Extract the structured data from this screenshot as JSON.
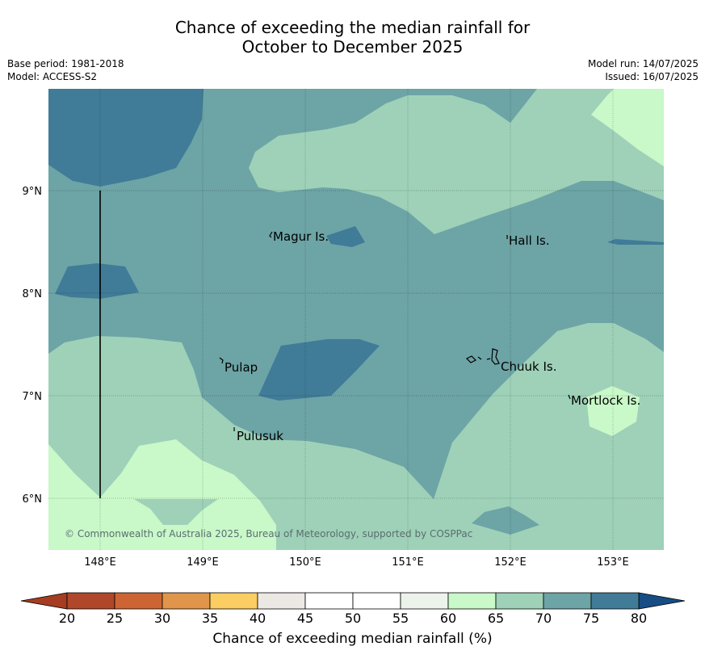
{
  "title": {
    "line1": "Chance of exceeding the median rainfall for",
    "line2": "October to December 2025"
  },
  "meta_left": {
    "base_period": "Base period: 1981-2018",
    "model": "Model: ACCESS-S2"
  },
  "meta_right": {
    "model_run": "Model run: 14/07/2025",
    "issued": "Issued: 16/07/2025"
  },
  "map": {
    "lon_ticks": [
      "148°E",
      "149°E",
      "150°E",
      "151°E",
      "152°E",
      "153°E"
    ],
    "lat_ticks": [
      "9°N",
      "8°N",
      "7°N",
      "6°N"
    ],
    "places": [
      {
        "name": "Magur Is."
      },
      {
        "name": "Hall Is."
      },
      {
        "name": "Pulap"
      },
      {
        "name": "Chuuk Is."
      },
      {
        "name": "Mortlock Is."
      },
      {
        "name": "Pulusuk"
      }
    ],
    "copyright": "© Commonwealth of Australia 2025, Bureau of Meteorology, supported by COSPPac",
    "colors": {
      "c55_60": "#ebf3ea",
      "c60_65": "#c9f8c9",
      "c65_70": "#9ed1b8",
      "c70_75": "#6da4a6",
      "c75_80": "#407b98"
    }
  },
  "colorbar": {
    "ticks": [
      "20",
      "25",
      "30",
      "35",
      "40",
      "45",
      "50",
      "55",
      "60",
      "65",
      "70",
      "75",
      "80"
    ],
    "colors": [
      "#b0472a",
      "#cd6434",
      "#e0954a",
      "#fbcd62",
      "#ece8e4",
      "#ffffff",
      "#ffffff",
      "#ebf3ea",
      "#c9f8c9",
      "#9ed1b8",
      "#6da4a6",
      "#407b98"
    ],
    "low_color": "#a63c22",
    "high_color": "#174d84",
    "label": "Chance of exceeding median rainfall (%)"
  }
}
